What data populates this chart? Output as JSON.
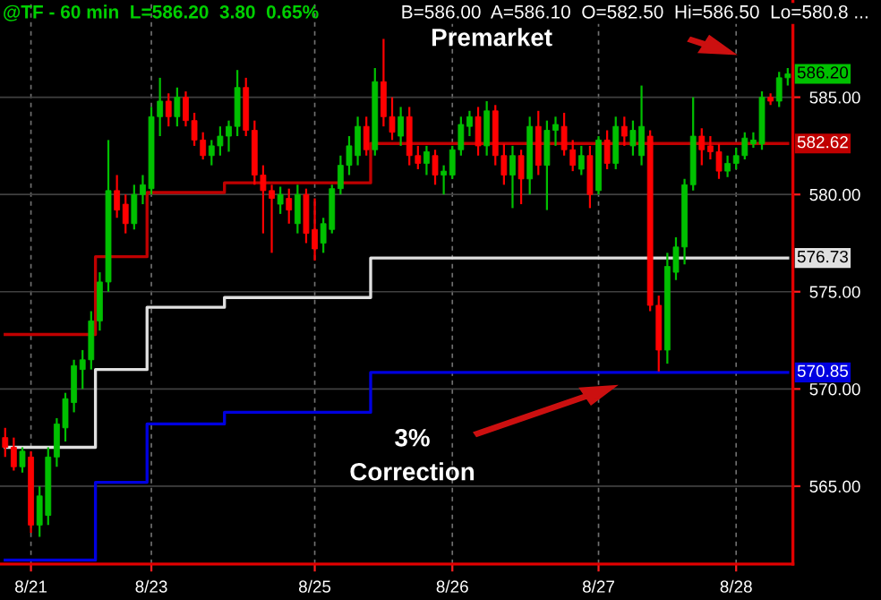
{
  "chart_data": {
    "type": "candlestick",
    "title": "@TF - 60 min  L=586.20  3.80  0.65%",
    "subtitle": "B=586.00  A=586.10  O=582.50  Hi=586.50  Lo=580.8 ...",
    "categories": [
      null,
      null,
      null,
      "8/21",
      null,
      null,
      null,
      null,
      null,
      null,
      null,
      null,
      null,
      null,
      null,
      null,
      null,
      "8/23",
      null,
      null,
      null,
      null,
      null,
      null,
      null,
      null,
      null,
      null,
      null,
      null,
      null,
      null,
      null,
      null,
      null,
      null,
      "8/25",
      null,
      null,
      null,
      null,
      null,
      null,
      null,
      null,
      null,
      null,
      null,
      null,
      null,
      null,
      null,
      "8/26",
      null,
      null,
      null,
      null,
      null,
      null,
      null,
      null,
      null,
      null,
      null,
      null,
      null,
      null,
      null,
      null,
      "8/27",
      null,
      null,
      null,
      null,
      null,
      null,
      null,
      null,
      null,
      null,
      null,
      null,
      null,
      null,
      null,
      "8/28",
      null,
      null,
      null,
      null,
      null,
      null
    ],
    "series": [
      {
        "ohlc": [
          [
            567.5,
            568,
            566.5,
            567
          ],
          [
            567,
            567.5,
            565.8,
            566
          ],
          [
            566,
            567,
            565.7,
            566.8
          ],
          [
            566.5,
            566.8,
            562.6,
            563
          ],
          [
            563,
            565,
            562.4,
            564.5
          ],
          [
            563.5,
            567,
            563,
            566.5
          ],
          [
            566.5,
            568.5,
            566,
            568.2
          ],
          [
            568,
            569.8,
            567.3,
            569.5
          ],
          [
            569.3,
            571.5,
            568.8,
            571.2
          ],
          [
            571,
            572,
            570,
            571.5
          ],
          [
            571.5,
            574,
            571,
            573.5
          ],
          [
            573.5,
            576,
            573,
            575.5
          ],
          [
            575.5,
            582.8,
            575,
            580.2
          ],
          [
            580.2,
            581,
            578.8,
            579.2
          ],
          [
            579.5,
            580,
            578,
            578.5
          ],
          [
            578.5,
            580.5,
            578.2,
            580
          ],
          [
            580,
            581,
            579.5,
            580.5
          ],
          [
            580.3,
            584.5,
            580,
            584
          ],
          [
            584,
            586,
            583,
            584.8
          ],
          [
            584.8,
            585.2,
            583.5,
            584
          ],
          [
            584,
            585.5,
            583.5,
            585
          ],
          [
            585,
            585.3,
            583.5,
            583.8
          ],
          [
            583.8,
            584.2,
            582.5,
            582.8
          ],
          [
            582.8,
            583.2,
            581.8,
            582
          ],
          [
            582,
            582.8,
            581.5,
            582.5
          ],
          [
            582.5,
            583.5,
            582,
            583
          ],
          [
            583,
            583.8,
            582.2,
            583.5
          ],
          [
            583.5,
            586.4,
            583,
            585.5
          ],
          [
            585.5,
            586,
            583,
            583.3
          ],
          [
            583.3,
            583.8,
            580.5,
            581
          ],
          [
            581,
            581.5,
            578,
            580.2
          ],
          [
            580.2,
            580.5,
            577,
            579.8
          ],
          [
            579.5,
            580.4,
            579,
            580
          ],
          [
            579.8,
            580.3,
            578.5,
            579.2
          ],
          [
            578.5,
            580.5,
            578,
            580
          ],
          [
            580,
            580.3,
            577.5,
            578
          ],
          [
            578.2,
            579.8,
            576.6,
            577.2
          ],
          [
            577.5,
            578.8,
            577,
            578.5
          ],
          [
            578.2,
            580.5,
            578,
            580.3
          ],
          [
            580.3,
            582,
            580,
            581.5
          ],
          [
            581.5,
            583,
            581,
            582.5
          ],
          [
            582,
            584,
            581.5,
            583.5
          ],
          [
            583.5,
            584,
            582,
            582.3
          ],
          [
            582.3,
            586.5,
            582,
            585.8
          ],
          [
            585.8,
            588,
            583.5,
            584
          ],
          [
            584,
            585,
            582.8,
            583.2
          ],
          [
            583,
            584.5,
            582.5,
            584
          ],
          [
            584,
            584.5,
            581.5,
            582
          ],
          [
            582,
            582.5,
            581.3,
            581.6
          ],
          [
            581.6,
            582.5,
            581,
            582.2
          ],
          [
            582,
            582.3,
            580.5,
            581
          ],
          [
            581,
            581.5,
            580,
            581.2
          ],
          [
            581,
            582.5,
            580.8,
            582.3
          ],
          [
            582.3,
            584,
            582,
            583.6
          ],
          [
            583.5,
            584.3,
            583,
            584
          ],
          [
            584,
            584.5,
            582,
            582.5
          ],
          [
            582.5,
            584.8,
            582,
            584.3
          ],
          [
            584.3,
            584.6,
            581.5,
            582
          ],
          [
            582,
            582.6,
            580.5,
            581
          ],
          [
            581,
            582.5,
            579.3,
            582
          ],
          [
            582,
            582.3,
            579.5,
            580.8
          ],
          [
            580.8,
            584,
            580,
            583.5
          ],
          [
            583.5,
            584.3,
            581,
            581.5
          ],
          [
            581.5,
            583.8,
            579.2,
            583.3
          ],
          [
            583.3,
            584,
            582.5,
            583.6
          ],
          [
            583.5,
            584.2,
            582,
            582.3
          ],
          [
            582.3,
            582.8,
            581.2,
            581.5
          ],
          [
            581.3,
            582.5,
            581,
            582
          ],
          [
            582,
            582.5,
            579.3,
            580
          ],
          [
            580.2,
            583,
            580,
            582.8
          ],
          [
            582.8,
            583.3,
            581.3,
            581.6
          ],
          [
            581.6,
            584,
            581.3,
            583.5
          ],
          [
            583.5,
            584,
            582.5,
            583
          ],
          [
            582.5,
            583.8,
            582,
            583.3
          ],
          [
            582,
            585.6,
            581.5,
            583.5
          ],
          [
            583,
            583.3,
            574,
            574.3
          ],
          [
            574.3,
            574.8,
            570.9,
            572
          ],
          [
            572,
            577,
            571.3,
            576.3
          ],
          [
            576,
            577.8,
            575.6,
            577.3
          ],
          [
            577.3,
            580.8,
            576.4,
            580.5
          ],
          [
            580.5,
            585,
            580.2,
            583
          ],
          [
            583,
            583.4,
            581.5,
            582.3
          ],
          [
            582.5,
            583,
            581.8,
            582.2
          ],
          [
            582.2,
            582.6,
            580.8,
            581.2
          ],
          [
            581.2,
            582,
            580.9,
            581.6
          ],
          [
            581.6,
            582.4,
            581.3,
            582
          ],
          [
            582,
            583.2,
            581.8,
            582.9
          ],
          [
            582.6,
            583.2,
            582.4,
            582.8
          ],
          [
            582.6,
            585.3,
            582.3,
            585
          ],
          [
            585,
            585.2,
            584.6,
            584.8
          ],
          [
            584.8,
            586.3,
            584.5,
            586
          ],
          [
            586,
            586.5,
            585.6,
            586.2
          ]
        ],
        "colors": [
          "#ff0000",
          "#ff0000",
          "#00c000",
          "#ff0000",
          "#00c000",
          "#00c000",
          "#00c000",
          "#00c000",
          "#00c000",
          "#00c000",
          "#00c000",
          "#00c000",
          "#00c000",
          "#ff0000",
          "#ff0000",
          "#00c000",
          "#00c000",
          "#00c000",
          "#00c000",
          "#ff0000",
          "#00c000",
          "#ff0000",
          "#ff0000",
          "#ff0000",
          "#00c000",
          "#00c000",
          "#00c000",
          "#00c000",
          "#ff0000",
          "#ff0000",
          "#ff0000",
          "#ff0000",
          "#00c000",
          "#ff0000",
          "#00c000",
          "#ff0000",
          "#ff0000",
          "#00c000",
          "#00c000",
          "#00c000",
          "#00c000",
          "#00c000",
          "#ff0000",
          "#00c000",
          "#ff0000",
          "#ff0000",
          "#00c000",
          "#ff0000",
          "#ff0000",
          "#00c000",
          "#ff0000",
          "#00c000",
          "#00c000",
          "#00c000",
          "#00c000",
          "#ff0000",
          "#00c000",
          "#ff0000",
          "#ff0000",
          "#00c000",
          "#ff0000",
          "#00c000",
          "#ff0000",
          "#00c000",
          "#00c000",
          "#ff0000",
          "#ff0000",
          "#00c000",
          "#ff0000",
          "#00c000",
          "#ff0000",
          "#00c000",
          "#ff0000",
          "#00c000",
          "#00c000",
          "#ff0000",
          "#ff0000",
          "#00c000",
          "#00c000",
          "#00c000",
          "#00c000",
          "#ff0000",
          "#ff0000",
          "#ff0000",
          "#00c000",
          "#00c000",
          "#00c000",
          "#00c000",
          "#00c000",
          "#ff0000",
          "#00c000",
          "#00c000"
        ]
      },
      {
        "type": "step",
        "color": "#c00000",
        "values": [
          572.8,
          572.8,
          572.8,
          572.8,
          572.8,
          572.8,
          572.8,
          572.8,
          572.8,
          572.8,
          572.8,
          576.8,
          576.8,
          576.8,
          576.8,
          576.8,
          576.8,
          580.1,
          580.1,
          580.1,
          580.1,
          580.1,
          580.1,
          580.1,
          580.1,
          580.1,
          580.6,
          580.6,
          580.6,
          580.6,
          580.6,
          580.6,
          580.6,
          580.6,
          580.6,
          580.6,
          580.6,
          580.6,
          580.6,
          580.6,
          580.6,
          580.6,
          580.6,
          582.62,
          582.62,
          582.62,
          582.62,
          582.62,
          582.62,
          582.62,
          582.62,
          582.62,
          582.62,
          582.62,
          582.62,
          582.62,
          582.62,
          582.62,
          582.62,
          582.62,
          582.62,
          582.62,
          582.62,
          582.62,
          582.62,
          582.62,
          582.62,
          582.62,
          582.62,
          582.62,
          582.62,
          582.62,
          582.62,
          582.62,
          582.62,
          582.62,
          582.62,
          582.62,
          582.62,
          582.62,
          582.62,
          582.62,
          582.62,
          582.62,
          582.62,
          582.62,
          582.62,
          582.62,
          582.62,
          582.62,
          582.62,
          582.62
        ]
      },
      {
        "type": "step",
        "color": "#e0e0e0",
        "values": [
          567,
          567,
          567,
          567,
          567,
          567,
          567,
          567,
          567,
          567,
          567,
          571,
          571,
          571,
          571,
          571,
          571,
          574.2,
          574.2,
          574.2,
          574.2,
          574.2,
          574.2,
          574.2,
          574.2,
          574.2,
          574.7,
          574.7,
          574.7,
          574.7,
          574.7,
          574.7,
          574.7,
          574.7,
          574.7,
          574.7,
          574.7,
          574.7,
          574.7,
          574.7,
          574.7,
          574.7,
          574.7,
          576.73,
          576.73,
          576.73,
          576.73,
          576.73,
          576.73,
          576.73,
          576.73,
          576.73,
          576.73,
          576.73,
          576.73,
          576.73,
          576.73,
          576.73,
          576.73,
          576.73,
          576.73,
          576.73,
          576.73,
          576.73,
          576.73,
          576.73,
          576.73,
          576.73,
          576.73,
          576.73,
          576.73,
          576.73,
          576.73,
          576.73,
          576.73,
          576.73,
          576.73,
          576.73,
          576.73,
          576.73,
          576.73,
          576.73,
          576.73,
          576.73,
          576.73,
          576.73,
          576.73,
          576.73,
          576.73,
          576.73,
          576.73,
          576.73
        ]
      },
      {
        "type": "step",
        "color": "#0000e0",
        "values": [
          561.2,
          561.2,
          561.2,
          561.2,
          561.2,
          561.2,
          561.2,
          561.2,
          561.2,
          561.2,
          561.2,
          565.2,
          565.2,
          565.2,
          565.2,
          565.2,
          565.2,
          568.2,
          568.2,
          568.2,
          568.2,
          568.2,
          568.2,
          568.2,
          568.2,
          568.2,
          568.8,
          568.8,
          568.8,
          568.8,
          568.8,
          568.8,
          568.8,
          568.8,
          568.8,
          568.8,
          568.8,
          568.8,
          568.8,
          568.8,
          568.8,
          568.8,
          568.8,
          570.85,
          570.85,
          570.85,
          570.85,
          570.85,
          570.85,
          570.85,
          570.85,
          570.85,
          570.85,
          570.85,
          570.85,
          570.85,
          570.85,
          570.85,
          570.85,
          570.85,
          570.85,
          570.85,
          570.85,
          570.85,
          570.85,
          570.85,
          570.85,
          570.85,
          570.85,
          570.85,
          570.85,
          570.85,
          570.85,
          570.85,
          570.85,
          570.85,
          570.85,
          570.85,
          570.85,
          570.85,
          570.85,
          570.85,
          570.85,
          570.85,
          570.85,
          570.85,
          570.85,
          570.85,
          570.85,
          570.85,
          570.85,
          570.85
        ]
      }
    ],
    "ylim": [
      561,
      590
    ],
    "yticks": [
      {
        "value": 565,
        "label": "565.00"
      },
      {
        "value": 570,
        "label": "570.00"
      },
      {
        "value": 575,
        "label": "575.00"
      },
      {
        "value": 580,
        "label": "580.00"
      },
      {
        "value": 585,
        "label": "585.00"
      }
    ],
    "grid": true,
    "annotations": [
      "Premarket",
      "3%\nCorrection",
      {
        "text": "586.20",
        "y": 586.2
      },
      {
        "text": "582.62",
        "y": 582.62
      },
      {
        "text": "576.73",
        "y": 576.73
      },
      {
        "text": "570.85",
        "y": 570.85
      }
    ]
  }
}
